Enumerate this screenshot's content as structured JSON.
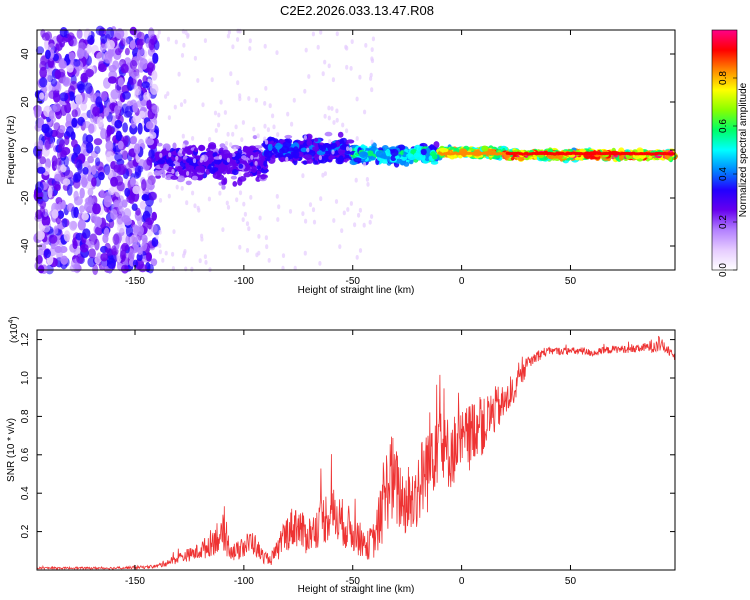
{
  "chart_data": [
    {
      "type": "heatmap",
      "title": "C2E2.2026.033.13.47.R08",
      "xlabel": "Height of straight line (km)",
      "ylabel": "Frequency (Hz)",
      "xlim": [
        -195,
        98
      ],
      "ylim": [
        -50,
        50
      ],
      "x_ticks": [
        -150,
        -100,
        -50,
        0,
        50
      ],
      "x_tick_labels": [
        "-150",
        "-100",
        "-50",
        "0",
        "50"
      ],
      "y_ticks": [
        -40,
        -20,
        0,
        20,
        40
      ],
      "y_tick_labels": [
        "-40",
        "-20",
        "0",
        "20",
        "40"
      ],
      "colorbar": {
        "label": "Normalized spectral amplitude",
        "range": [
          0,
          1
        ],
        "ticks": [
          0,
          0.2,
          0.4,
          0.6,
          0.8
        ],
        "tick_labels": [
          "0.0",
          "0.2",
          "0.4",
          "0.6",
          "0.8"
        ],
        "colormap": [
          "#ffffff",
          "#e6ccff",
          "#b380ff",
          "#6600ee",
          "#2200ff",
          "#0088ff",
          "#00ffff",
          "#00ff66",
          "#88ff00",
          "#ffff00",
          "#ff8800",
          "#ff0000",
          "#ff0088"
        ]
      },
      "regions": [
        {
          "x_range": [
            -195,
            -140
          ],
          "freq_center": 0,
          "freq_spread": 50,
          "amplitude": 0.25,
          "density": "diffuse noise"
        },
        {
          "x_range": [
            -140,
            -90
          ],
          "freq_center": -5,
          "freq_spread": 12,
          "amplitude": 0.3
        },
        {
          "x_range": [
            -90,
            -50
          ],
          "freq_center": 0,
          "freq_spread": 8,
          "amplitude": 0.38
        },
        {
          "x_range": [
            -50,
            -10
          ],
          "freq_center": -2,
          "freq_spread": 5,
          "amplitude": 0.55
        },
        {
          "x_range": [
            -10,
            20
          ],
          "freq_center": -1,
          "freq_spread": 3,
          "amplitude": 0.8
        },
        {
          "x_range": [
            20,
            98
          ],
          "freq_center": -2,
          "freq_spread": 2.5,
          "amplitude": 0.9
        }
      ]
    },
    {
      "type": "line",
      "xlabel": "Height of straight line (km)",
      "ylabel": "SNR (10 * v/v)",
      "y_scale_label": "(x10^4)",
      "y_scale_base": "(x10",
      "y_scale_exp": "4",
      "y_scale_close": ")",
      "xlim": [
        -195,
        98
      ],
      "ylim": [
        0,
        1.25
      ],
      "x_ticks": [
        -150,
        -100,
        -50,
        0,
        50
      ],
      "x_tick_labels": [
        "-150",
        "-100",
        "-50",
        "0",
        "50"
      ],
      "y_ticks": [
        0.2,
        0.4,
        0.6,
        0.8,
        1.0,
        1.2
      ],
      "y_tick_labels": [
        "0.2",
        "0.4",
        "0.6",
        "0.8",
        "1.0",
        "1.2"
      ],
      "color": "#ee3333",
      "series": [
        {
          "name": "SNR",
          "x": [
            -195,
            -180,
            -160,
            -145,
            -140,
            -135,
            -128,
            -122,
            -117,
            -112,
            -108,
            -104,
            -100,
            -96,
            -92,
            -88,
            -84,
            -80,
            -76,
            -72,
            -68,
            -64,
            -60,
            -56,
            -52,
            -48,
            -44,
            -40,
            -36,
            -33,
            -30,
            -27,
            -24,
            -21,
            -18,
            -15,
            -12,
            -10,
            -8,
            -5,
            -2,
            1,
            4,
            7,
            10,
            13,
            16,
            19,
            22,
            25,
            28,
            31,
            34,
            37,
            40,
            45,
            50,
            55,
            60,
            65,
            70,
            75,
            80,
            85,
            88,
            90,
            93,
            96,
            98
          ],
          "values": [
            0.01,
            0.01,
            0.01,
            0.015,
            0.02,
            0.04,
            0.07,
            0.09,
            0.12,
            0.18,
            0.14,
            0.09,
            0.12,
            0.15,
            0.08,
            0.05,
            0.11,
            0.2,
            0.24,
            0.18,
            0.2,
            0.26,
            0.3,
            0.26,
            0.22,
            0.18,
            0.12,
            0.16,
            0.32,
            0.5,
            0.42,
            0.36,
            0.34,
            0.4,
            0.48,
            0.56,
            0.7,
            0.72,
            0.6,
            0.62,
            0.64,
            0.66,
            0.7,
            0.76,
            0.74,
            0.8,
            0.84,
            0.86,
            0.9,
            0.96,
            1.02,
            1.08,
            1.11,
            1.13,
            1.14,
            1.14,
            1.14,
            1.14,
            1.13,
            1.14,
            1.15,
            1.15,
            1.15,
            1.16,
            1.17,
            1.18,
            1.16,
            1.13,
            1.11
          ],
          "noise_amplitude": [
            0.005,
            0.005,
            0.006,
            0.008,
            0.01,
            0.02,
            0.03,
            0.04,
            0.06,
            0.09,
            0.07,
            0.05,
            0.06,
            0.07,
            0.04,
            0.03,
            0.06,
            0.1,
            0.12,
            0.1,
            0.1,
            0.13,
            0.15,
            0.13,
            0.12,
            0.1,
            0.07,
            0.1,
            0.2,
            0.26,
            0.22,
            0.18,
            0.18,
            0.2,
            0.22,
            0.26,
            0.28,
            0.26,
            0.2,
            0.2,
            0.18,
            0.18,
            0.18,
            0.16,
            0.15,
            0.14,
            0.12,
            0.1,
            0.08,
            0.07,
            0.05,
            0.04,
            0.03,
            0.03,
            0.02,
            0.02,
            0.02,
            0.02,
            0.02,
            0.02,
            0.02,
            0.02,
            0.02,
            0.025,
            0.04,
            0.05,
            0.03,
            0.02,
            0.02
          ]
        }
      ]
    }
  ]
}
